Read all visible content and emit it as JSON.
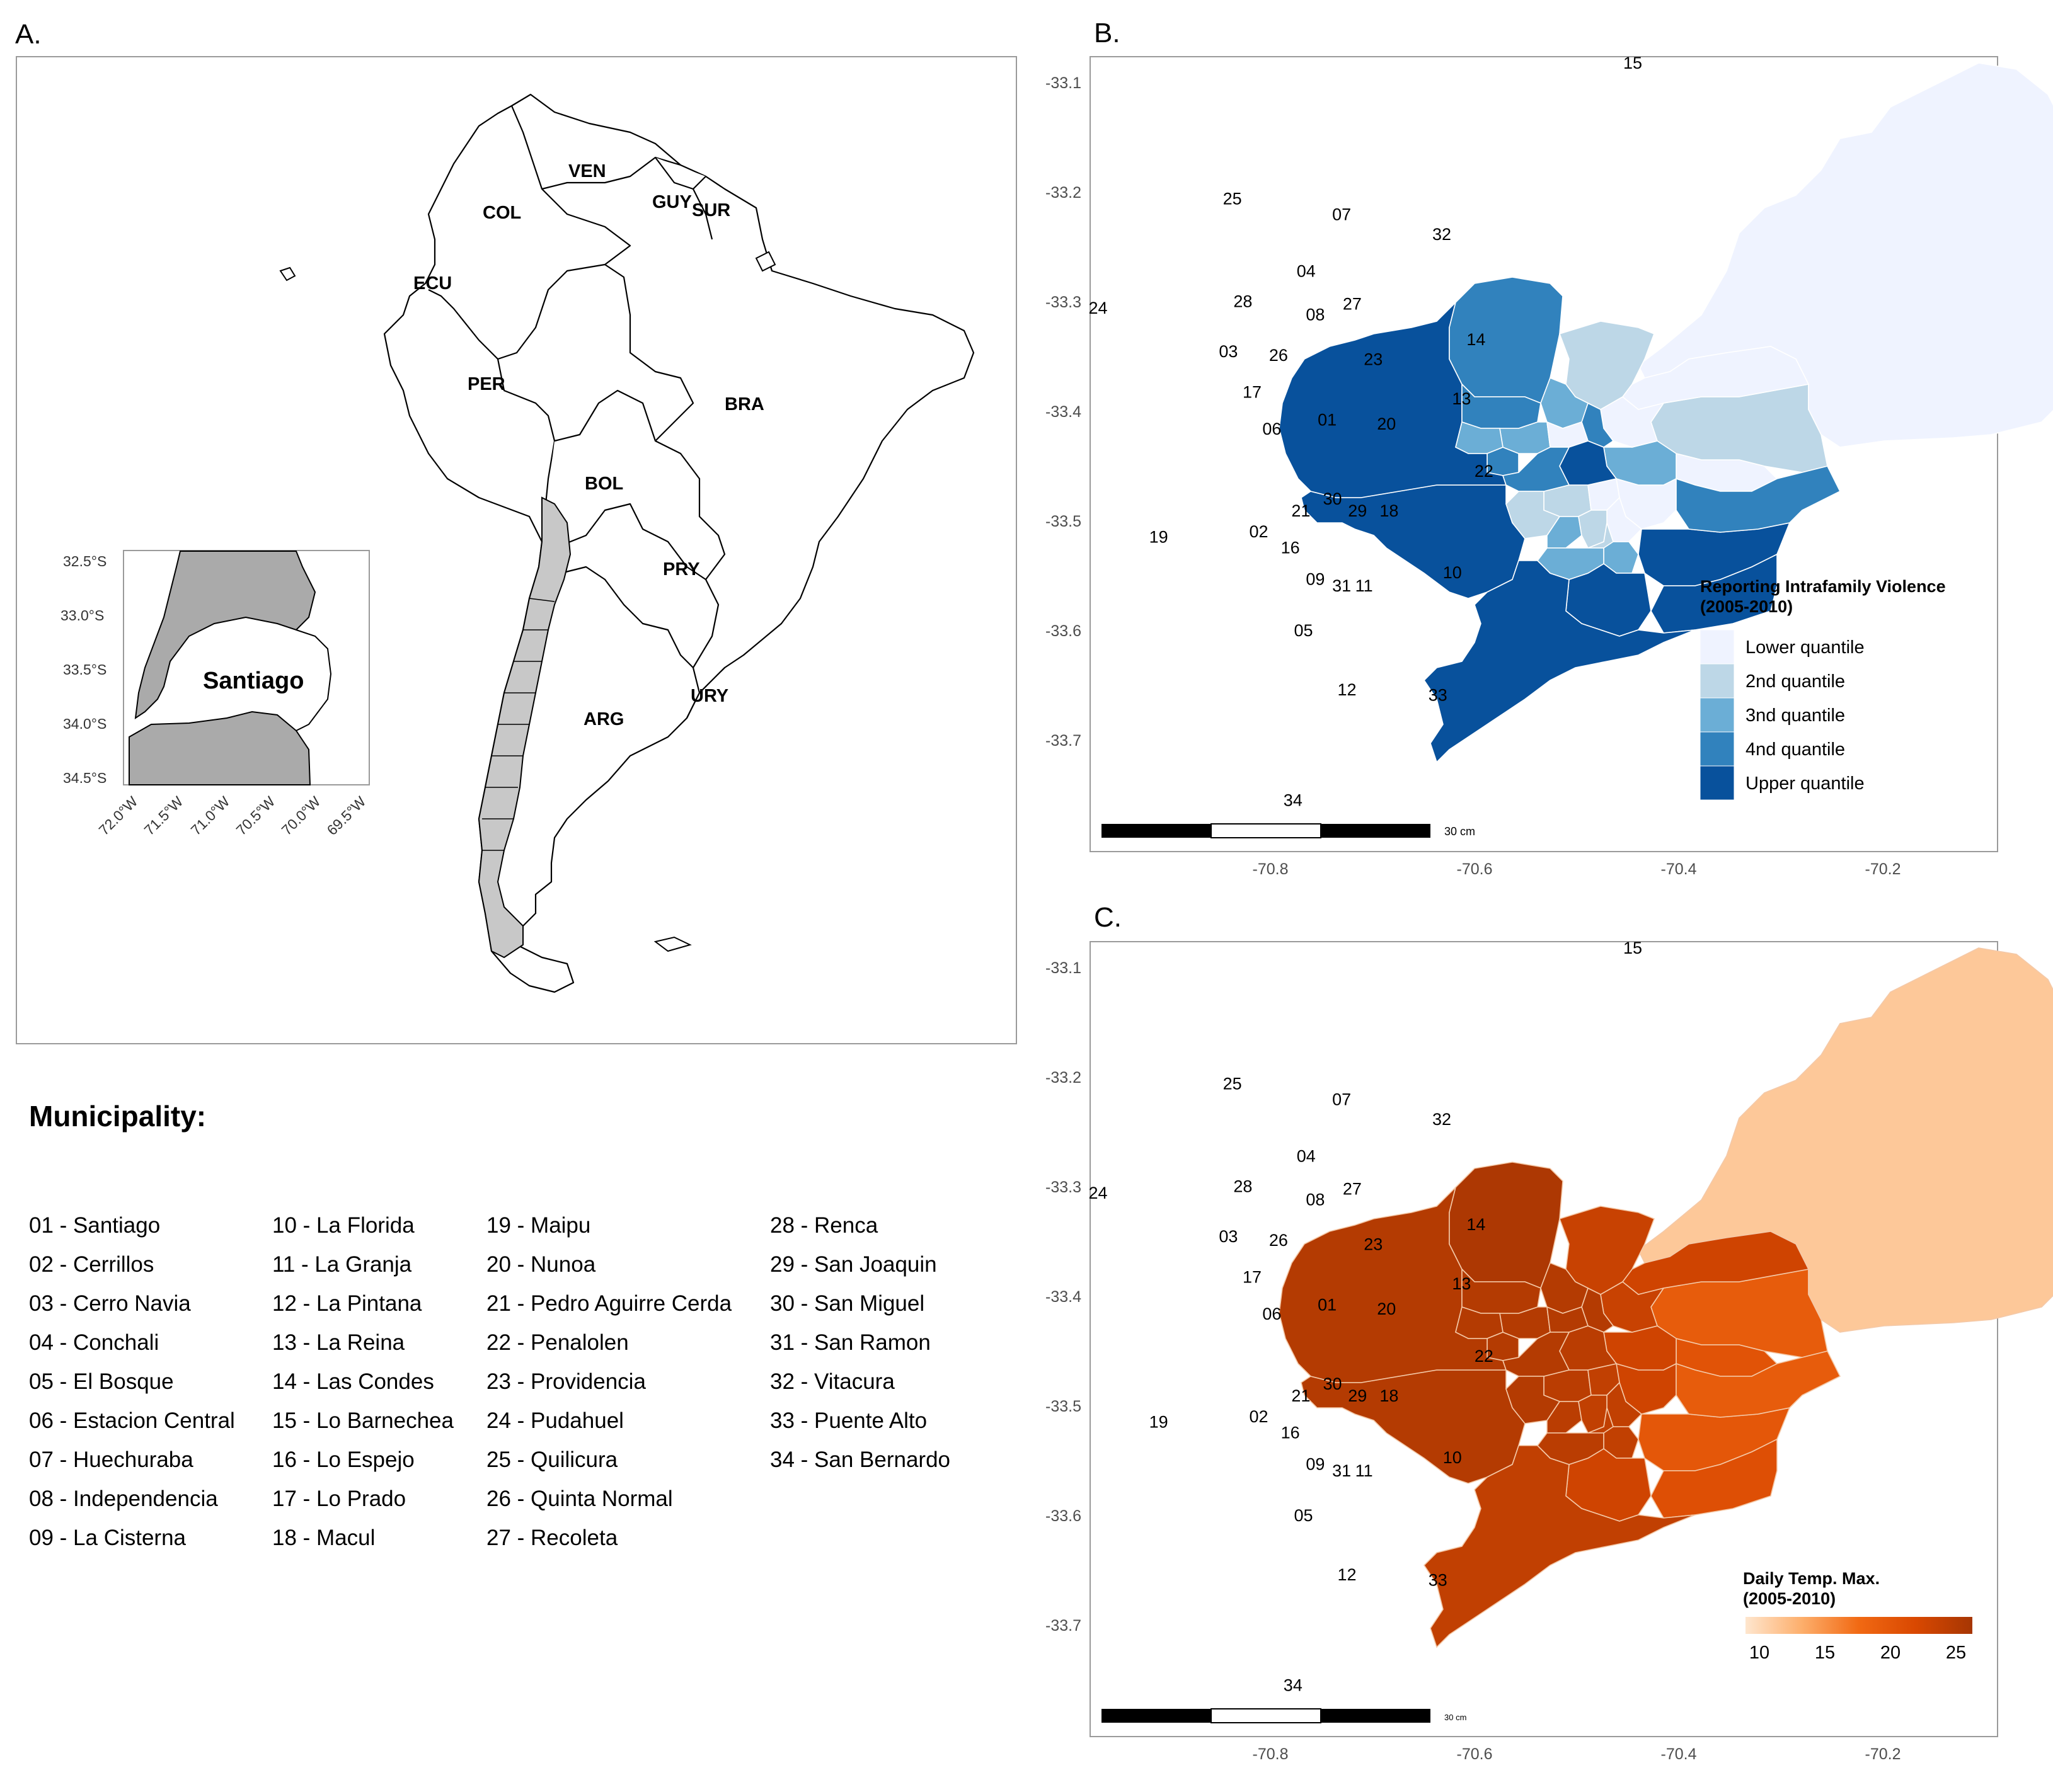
{
  "panels": {
    "a": {
      "letter": "A.",
      "countries": [
        "VEN",
        "COL",
        "GUY",
        "SUR",
        "ECU",
        "PER",
        "BRA",
        "BOL",
        "PRY",
        "ARG",
        "URY"
      ],
      "inset": {
        "label": "Santiago",
        "lat_ticks": [
          "32.5°S",
          "33.0°S",
          "33.5°S",
          "34.0°S",
          "34.5°S"
        ],
        "lon_ticks": [
          "72.0°W",
          "71.5°W",
          "71.0°W",
          "70.5°W",
          "70.0°W",
          "69.5°W"
        ]
      }
    },
    "b": {
      "letter": "B.",
      "y_ticks": [
        "-33.1",
        "-33.2",
        "-33.3",
        "-33.4",
        "-33.5",
        "-33.6",
        "-33.7"
      ],
      "x_ticks": [
        "-70.8",
        "-70.6",
        "-70.4",
        "-70.2"
      ],
      "legend": {
        "title_line1": "Reporting Intrafamily Violence",
        "title_line2": "(2005-2010)",
        "items": [
          {
            "label": "Lower quantile",
            "color": "#eff3ff"
          },
          {
            "label": "2nd quantile",
            "color": "#bdd7e7"
          },
          {
            "label": "3nd quantile",
            "color": "#6baed6"
          },
          {
            "label": "4nd quantile",
            "color": "#3182bd"
          },
          {
            "label": "Upper quantile",
            "color": "#08519c"
          }
        ]
      },
      "scale_label": "30 cm",
      "quantiles": {
        "15": "Lower quantile",
        "32": "Lower quantile",
        "23": "Lower quantile",
        "13": "Lower quantile",
        "08": "Lower quantile",
        "30": "Lower quantile",
        "29": "Lower quantile",
        "18": "Lower quantile",
        "07": "2nd quantile",
        "14": "2nd quantile",
        "09": "2nd quantile",
        "31": "2nd quantile",
        "02": "2nd quantile",
        "21": "2nd quantile",
        "04": "3nd quantile",
        "03": "3nd quantile",
        "26": "3nd quantile",
        "20": "3nd quantile",
        "11": "3nd quantile",
        "05": "3nd quantile",
        "16": "3nd quantile",
        "25": "4nd quantile",
        "28": "4nd quantile",
        "27": "4nd quantile",
        "17": "4nd quantile",
        "06": "4nd quantile",
        "22": "4nd quantile",
        "24": "Upper quantile",
        "19": "Upper quantile",
        "01": "Upper quantile",
        "10": "Upper quantile",
        "12": "Upper quantile",
        "33": "Upper quantile",
        "34": "Upper quantile"
      }
    },
    "c": {
      "letter": "C.",
      "y_ticks": [
        "-33.1",
        "-33.2",
        "-33.3",
        "-33.4",
        "-33.5",
        "-33.6",
        "-33.7"
      ],
      "x_ticks": [
        "-70.8",
        "-70.6",
        "-70.4",
        "-70.2"
      ],
      "legend": {
        "title_line1": "Daily Temp. Max.",
        "title_line2": "(2005-2010)",
        "ticks": [
          "10",
          "15",
          "20",
          "25"
        ],
        "gradient": [
          "#fee6ce",
          "#fdae6b",
          "#f16913",
          "#d94801",
          "#a63603"
        ]
      },
      "scale_label": "30 cm",
      "temps": {
        "15": 12,
        "14": 19,
        "13": 20,
        "22": 19,
        "10": 19.5,
        "33": 20.5,
        "32": 22,
        "12": 22,
        "18": 22,
        "20": 22,
        "07": 22.5,
        "23": 22.5,
        "34": 23,
        "09": 23,
        "31": 23,
        "11": 23,
        "29": 23,
        "30": 23,
        "01": 23.5,
        "21": 23.5,
        "16": 23.5,
        "05": 23.5,
        "02": 24,
        "04": 24,
        "08": 24,
        "27": 24,
        "06": 24,
        "17": 24,
        "26": 24,
        "28": 24,
        "03": 24,
        "24": 24,
        "19": 24,
        "25": 24.5
      }
    }
  },
  "municipality": {
    "title": "Municipality:",
    "columns": [
      [
        "01 - Santiago",
        "02 - Cerrillos",
        "03 - Cerro Navia",
        "04 - Conchali",
        "05 - El Bosque",
        "06 - Estacion Central",
        "07 - Huechuraba",
        "08 - Independencia",
        "09 - La Cisterna"
      ],
      [
        "10 - La Florida",
        "11 - La Granja",
        "12 - La Pintana",
        "13 - La Reina",
        "14 - Las Condes",
        "15 - Lo Barnechea",
        "16 - Lo Espejo",
        "17 - Lo Prado",
        "18 - Macul"
      ],
      [
        "19 - Maipu",
        "20 - Nunoa",
        "21 - Pedro Aguirre Cerda",
        "22 - Penalolen",
        "23 - Providencia",
        "24 - Pudahuel",
        "25 - Quilicura",
        "26 - Quinta Normal",
        "27 - Recoleta"
      ],
      [
        "28 - Renca",
        "29 - San Joaquin",
        "30 - San Miguel",
        "31 - San Ramon",
        "32 - Vitacura",
        "33 - Puente Alto",
        "34 - San Bernardo"
      ]
    ]
  }
}
